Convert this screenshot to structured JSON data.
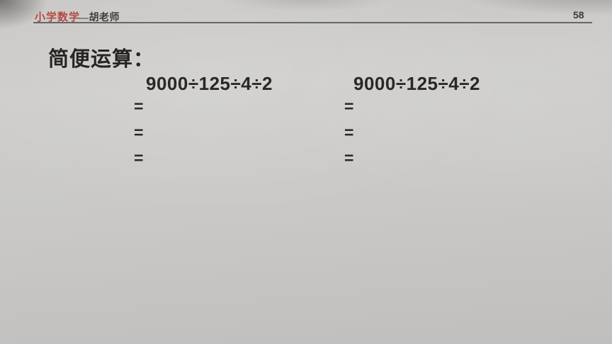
{
  "header": {
    "brand": "小学数学",
    "author": "—胡老师",
    "page_number": "58",
    "brand_color": "#b24a40",
    "rule_color": "#55535a"
  },
  "content": {
    "section_title": "简便运算：",
    "ink_color": "#292826",
    "paper_color": "#c8c7c5",
    "problems": [
      {
        "expression": "9000÷125÷4÷2",
        "steps": [
          "=",
          "=",
          "="
        ]
      },
      {
        "expression": "9000÷125÷4÷2",
        "steps": [
          "=",
          "=",
          "="
        ]
      }
    ]
  }
}
